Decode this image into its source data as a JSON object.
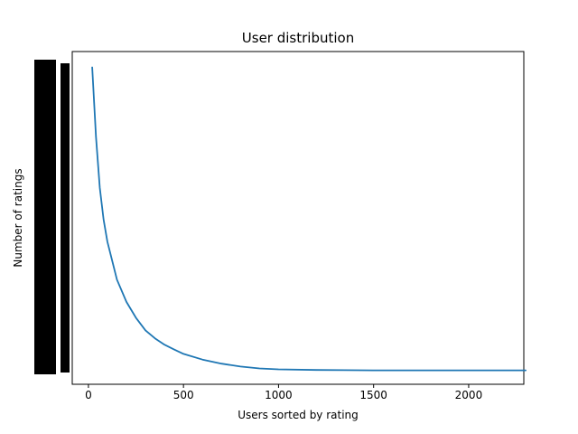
{
  "chart_data": {
    "type": "line",
    "title": "User distribution",
    "xlabel": "Users sorted by rating",
    "ylabel": "Number of ratings",
    "x_ticks": [
      0,
      500,
      1000,
      1500,
      2000
    ],
    "x_tick_labels": [
      "0",
      "500",
      "1000",
      "1500",
      "2000"
    ],
    "xlim": [
      -85,
      2290
    ],
    "ylim": [
      0,
      1.05
    ],
    "y_axis_note": "y tick labels are so dense they overlap into solid black bars and are unreadable",
    "grid": false,
    "legend": false,
    "line_color": "#1f77b4",
    "series": [
      {
        "name": "users-by-rating-count",
        "color": "#1f77b4",
        "points": [
          [
            20,
            1.0
          ],
          [
            40,
            0.78
          ],
          [
            60,
            0.62
          ],
          [
            80,
            0.52
          ],
          [
            100,
            0.45
          ],
          [
            150,
            0.33
          ],
          [
            200,
            0.26
          ],
          [
            250,
            0.21
          ],
          [
            300,
            0.17
          ],
          [
            350,
            0.145
          ],
          [
            400,
            0.125
          ],
          [
            450,
            0.11
          ],
          [
            500,
            0.096
          ],
          [
            600,
            0.078
          ],
          [
            700,
            0.065
          ],
          [
            800,
            0.056
          ],
          [
            900,
            0.05
          ],
          [
            1000,
            0.047
          ],
          [
            1200,
            0.045
          ],
          [
            1500,
            0.044
          ],
          [
            1800,
            0.044
          ],
          [
            2100,
            0.044
          ],
          [
            2300,
            0.044
          ]
        ]
      }
    ]
  }
}
